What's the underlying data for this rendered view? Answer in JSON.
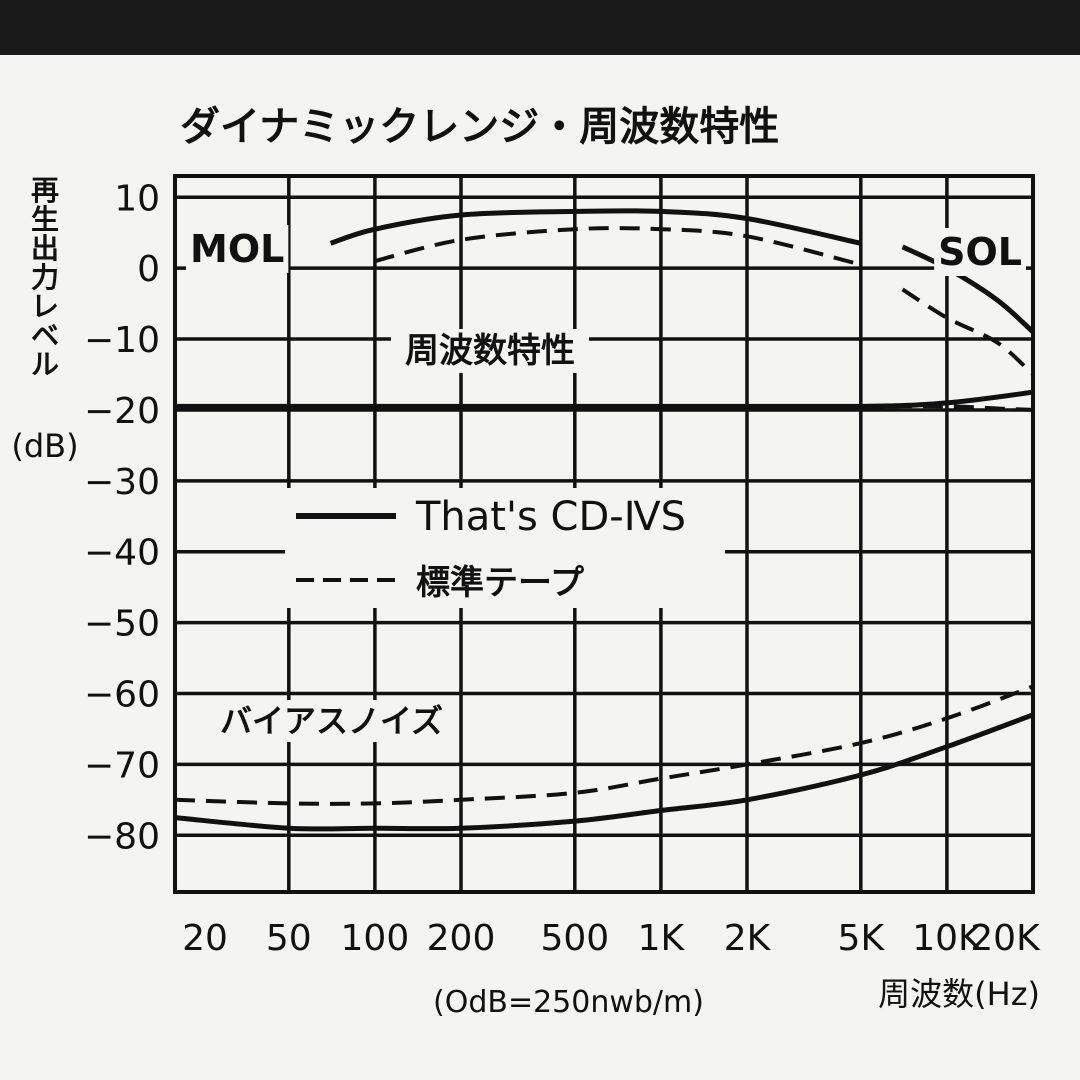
{
  "chart_data": {
    "type": "line",
    "title": "ダイナミックレンジ・周波数特性",
    "ylabel": "再生出力レベル",
    "yunit": "(dB)",
    "xlabel": "周波数(Hz)",
    "note": "(OdB=250nwb/m)",
    "x_ticks": [
      "20",
      "50",
      "100",
      "200",
      "500",
      "1K",
      "2K",
      "5K",
      "10K",
      "20K"
    ],
    "x_tick_values": [
      20,
      50,
      100,
      200,
      500,
      1000,
      2000,
      5000,
      10000,
      20000
    ],
    "y_ticks": [
      "10",
      "0",
      "−10",
      "−20",
      "−30",
      "−40",
      "−50",
      "−60",
      "−70",
      "−80"
    ],
    "y_tick_values": [
      10,
      0,
      -10,
      -20,
      -30,
      -40,
      -50,
      -60,
      -70,
      -80
    ],
    "xscale": "log",
    "xlim": [
      20,
      20000
    ],
    "ylim": [
      -88,
      13
    ],
    "grid": true,
    "legend_placement": "center-left",
    "annotations": {
      "mol": "MOL",
      "sol": "SOL",
      "freq_response": "周波数特性",
      "bias_noise": "バイアスノイズ"
    },
    "series": [
      {
        "name": "That's CD-ⅣS",
        "style": "solid",
        "group": "MOL",
        "x": [
          70,
          100,
          200,
          500,
          1000,
          2000,
          5000
        ],
        "y": [
          3.5,
          5.5,
          7.5,
          8,
          8,
          7,
          3.5
        ]
      },
      {
        "name": "標準テープ",
        "style": "dashed",
        "group": "MOL",
        "x": [
          100,
          200,
          500,
          1000,
          2000,
          5000
        ],
        "y": [
          1,
          4,
          5.5,
          5.5,
          4.5,
          0.5
        ]
      },
      {
        "name": "That's CD-ⅣS",
        "style": "solid",
        "group": "SOL",
        "x": [
          7000,
          10000,
          15000,
          20000
        ],
        "y": [
          3,
          0,
          -4.5,
          -9
        ]
      },
      {
        "name": "標準テープ",
        "style": "dashed",
        "group": "SOL",
        "x": [
          7000,
          10000,
          15000,
          20000
        ],
        "y": [
          -3,
          -7,
          -10.5,
          -15
        ]
      },
      {
        "name": "That's CD-ⅣS",
        "style": "solid",
        "group": "周波数特性",
        "x": [
          20,
          100,
          1000,
          5000,
          10000,
          20000
        ],
        "y": [
          -19.5,
          -19.5,
          -19.5,
          -19.5,
          -19,
          -17.5
        ]
      },
      {
        "name": "標準テープ",
        "style": "dashed",
        "group": "周波数特性",
        "x": [
          5000,
          10000,
          15000,
          20000
        ],
        "y": [
          -19.5,
          -19.5,
          -19.8,
          -20
        ]
      },
      {
        "name": "That's CD-ⅣS",
        "style": "solid",
        "group": "バイアスノイズ",
        "x": [
          20,
          50,
          100,
          200,
          500,
          1000,
          2000,
          5000,
          10000,
          20000
        ],
        "y": [
          -77.5,
          -79,
          -79,
          -79,
          -78,
          -76.5,
          -75,
          -71.5,
          -67.5,
          -63
        ]
      },
      {
        "name": "標準テープ",
        "style": "dashed",
        "group": "バイアスノイズ",
        "x": [
          20,
          50,
          100,
          200,
          500,
          1000,
          2000,
          5000,
          10000,
          20000
        ],
        "y": [
          -75,
          -75.5,
          -75.5,
          -75,
          -74,
          -72,
          -70,
          -67,
          -63.5,
          -59
        ]
      }
    ],
    "legend": [
      {
        "label": "That's CD-ⅣS",
        "style": "solid"
      },
      {
        "label": "標準テープ",
        "style": "dashed"
      }
    ]
  }
}
